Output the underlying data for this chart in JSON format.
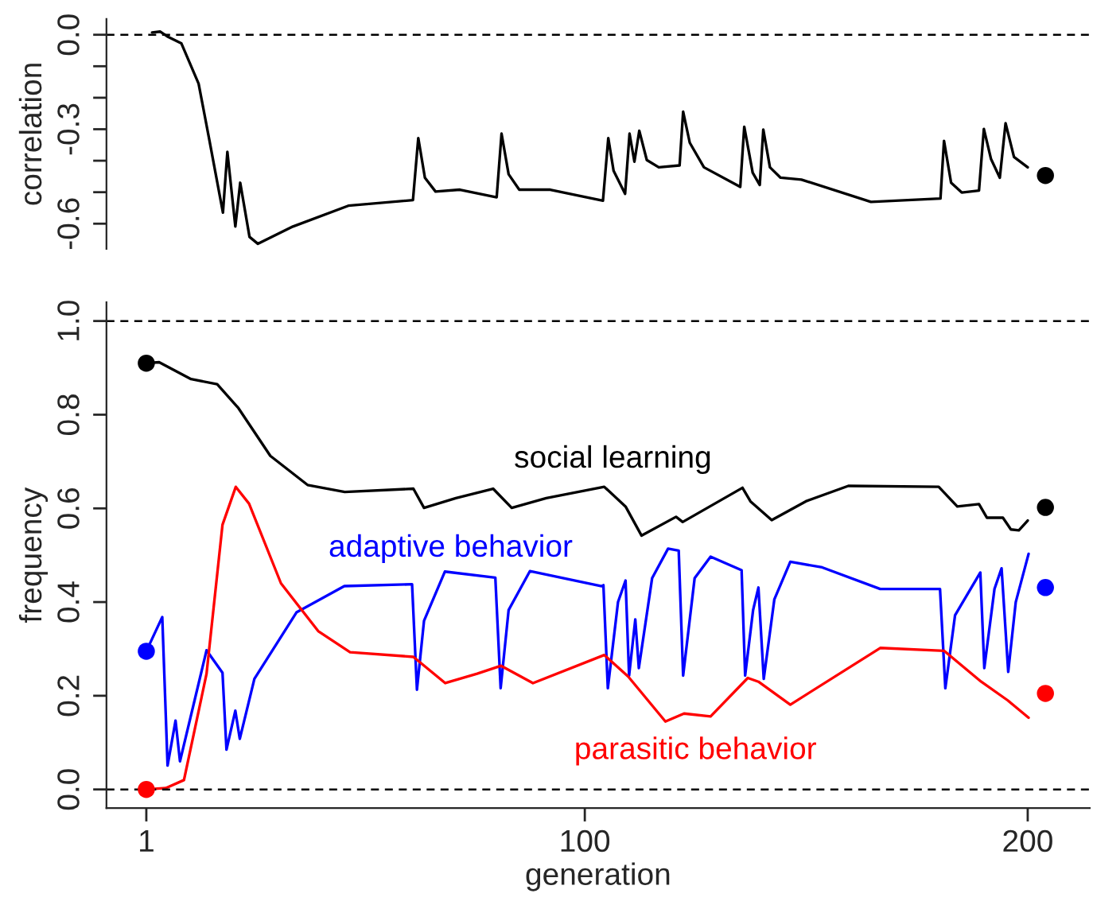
{
  "chart_data": [
    {
      "type": "line",
      "ylabel": "correlation",
      "xlim": [
        -8,
        214
      ],
      "ylim": [
        -0.68,
        0.05
      ],
      "xticks": [
        1,
        100,
        200
      ],
      "tick_labels": "y",
      "yticks": [
        {
          "value": 0,
          "label": "0.0"
        },
        {
          "value": -0.1,
          "label": null
        },
        {
          "value": -0.2,
          "label": null
        },
        -0.3,
        {
          "value": -0.4,
          "label": null
        },
        {
          "value": -0.5,
          "label": null
        },
        -0.6
      ],
      "ref_lines": [
        {
          "axis": "y",
          "value": 0,
          "color": "#000000",
          "line_style": "dashed"
        }
      ],
      "series": [
        {
          "color": "#000000",
          "x": [
            2.3,
            4.1,
            5.7,
            8.9,
            12.8,
            15.2,
            18.3,
            19.3,
            21.1,
            22.2,
            24.3,
            26.2,
            34.1,
            46.6,
            61.2,
            62.4,
            63.9,
            66.3,
            71.8,
            80.1,
            81.2,
            82.8,
            85.2,
            92.2,
            104.1,
            105.3,
            106.5,
            109.1,
            110.1,
            111.2,
            112.3,
            114.0,
            116.7,
            121.4,
            122.2,
            123.7,
            126.9,
            135.1,
            136.0,
            137.9,
            139.5,
            140.3,
            141.8,
            144.2,
            148.9,
            164.6,
            180.3,
            181.1,
            182.7,
            185.1,
            189.0,
            190.1,
            191.7,
            193.7,
            195.0,
            196.9,
            200.0
          ],
          "values": [
            0.007,
            0.01,
            -0.005,
            -0.027,
            -0.155,
            -0.332,
            -0.565,
            -0.372,
            -0.609,
            -0.47,
            -0.642,
            -0.664,
            -0.609,
            -0.543,
            -0.525,
            -0.328,
            -0.454,
            -0.498,
            -0.492,
            -0.516,
            -0.314,
            -0.443,
            -0.492,
            -0.492,
            -0.527,
            -0.328,
            -0.432,
            -0.505,
            -0.314,
            -0.403,
            -0.305,
            -0.398,
            -0.421,
            -0.415,
            -0.244,
            -0.343,
            -0.421,
            -0.483,
            -0.292,
            -0.438,
            -0.477,
            -0.301,
            -0.421,
            -0.454,
            -0.46,
            -0.531,
            -0.52,
            -0.337,
            -0.47,
            -0.501,
            -0.495,
            -0.299,
            -0.394,
            -0.454,
            -0.281,
            -0.388,
            -0.421
          ]
        },
        {
          "type": "scatter",
          "color": "#000000",
          "marker": "circle",
          "x": [
            204
          ],
          "values": [
            -0.447
          ]
        }
      ]
    },
    {
      "type": "line",
      "xlabel": "generation",
      "ylabel": "frequency",
      "xlim": [
        -8,
        214
      ],
      "ylim": [
        -0.04,
        1.04
      ],
      "xticks": [
        1,
        100,
        200
      ],
      "yticks": [
        {
          "value": 0,
          "label": "0.0"
        },
        0.2,
        0.4,
        0.6,
        0.8,
        {
          "value": 1,
          "label": "1.0"
        }
      ],
      "ref_lines": [
        {
          "axis": "y",
          "value": 0,
          "color": "#000000",
          "line_style": "dashed"
        },
        {
          "axis": "y",
          "value": 1,
          "color": "#000000",
          "line_style": "dashed"
        }
      ],
      "series": [
        {
          "name": "social learning",
          "color": "#000000",
          "x": [
            1,
            3.9,
            11.1,
            17.0,
            21.8,
            29.0,
            37.4,
            45.8,
            61.3,
            63.7,
            70.9,
            79.3,
            83.5,
            91.3,
            104.4,
            109.2,
            112.8,
            120.6,
            122.1,
            135.6,
            137.4,
            142.2,
            149.9,
            159.5,
            179.9,
            184.1,
            189.0,
            190.8,
            194.4,
            196.2,
            198.0,
            200
          ],
          "values": [
            0.91,
            0.912,
            0.876,
            0.865,
            0.814,
            0.712,
            0.65,
            0.635,
            0.642,
            0.601,
            0.622,
            0.642,
            0.601,
            0.622,
            0.646,
            0.604,
            0.542,
            0.582,
            0.571,
            0.644,
            0.615,
            0.575,
            0.615,
            0.648,
            0.646,
            0.604,
            0.609,
            0.58,
            0.58,
            0.555,
            0.553,
            0.574
          ]
        },
        {
          "name": "adaptive behavior",
          "color": "#0000ff",
          "x": [
            1,
            4.6,
            5.8,
            7.6,
            8.6,
            14.6,
            18.2,
            19.1,
            21.1,
            22.1,
            25.4,
            34.9,
            45.7,
            61.0,
            62.1,
            63.7,
            68.4,
            79.8,
            81.0,
            82.8,
            87.6,
            103.8,
            104.2,
            105.2,
            107.5,
            109.2,
            110.0,
            111.4,
            112.2,
            115.2,
            118.8,
            121.2,
            122.2,
            124.8,
            128.4,
            135.4,
            136.2,
            138.0,
            139.2,
            140.4,
            142.8,
            146.4,
            153.6,
            166.7,
            180.2,
            181.4,
            183.6,
            189.3,
            190.2,
            192.5,
            194.1,
            195.6,
            197.3,
            200.2
          ],
          "values": [
            0.295,
            0.368,
            0.051,
            0.147,
            0.06,
            0.297,
            0.249,
            0.085,
            0.168,
            0.108,
            0.236,
            0.378,
            0.434,
            0.438,
            0.213,
            0.36,
            0.465,
            0.452,
            0.216,
            0.383,
            0.466,
            0.434,
            0.436,
            0.216,
            0.4,
            0.446,
            0.243,
            0.363,
            0.259,
            0.451,
            0.514,
            0.51,
            0.243,
            0.451,
            0.497,
            0.468,
            0.243,
            0.383,
            0.431,
            0.236,
            0.406,
            0.486,
            0.474,
            0.428,
            0.428,
            0.216,
            0.372,
            0.463,
            0.259,
            0.428,
            0.472,
            0.251,
            0.4,
            0.503
          ]
        },
        {
          "name": "parasitic behavior",
          "color": "#ff0000",
          "x": [
            1,
            5.4,
            9.5,
            14.6,
            18.2,
            21.2,
            24.2,
            31.4,
            39.8,
            47.0,
            61.3,
            68.5,
            75.7,
            81.1,
            88.3,
            104.4,
            109.8,
            118.2,
            122.4,
            128.4,
            136.8,
            139.2,
            146.4,
            166.7,
            181.1,
            189.5,
            195.5,
            200.2
          ],
          "values": [
            0.0,
            0.003,
            0.02,
            0.247,
            0.565,
            0.646,
            0.61,
            0.44,
            0.338,
            0.293,
            0.283,
            0.227,
            0.247,
            0.264,
            0.227,
            0.287,
            0.241,
            0.145,
            0.162,
            0.156,
            0.238,
            0.23,
            0.181,
            0.302,
            0.296,
            0.23,
            0.19,
            0.153
          ]
        },
        {
          "type": "scatter",
          "color": "#000000",
          "marker": "circle",
          "x": [
            1,
            204
          ],
          "values": [
            0.91,
            0.602
          ]
        },
        {
          "type": "scatter",
          "color": "#0000ff",
          "marker": "circle",
          "x": [
            1,
            204
          ],
          "values": [
            0.295,
            0.431
          ]
        },
        {
          "type": "scatter",
          "color": "#ff0000",
          "marker": "circle",
          "x": [
            1,
            204
          ],
          "values": [
            0.0,
            0.205
          ]
        }
      ]
    }
  ]
}
